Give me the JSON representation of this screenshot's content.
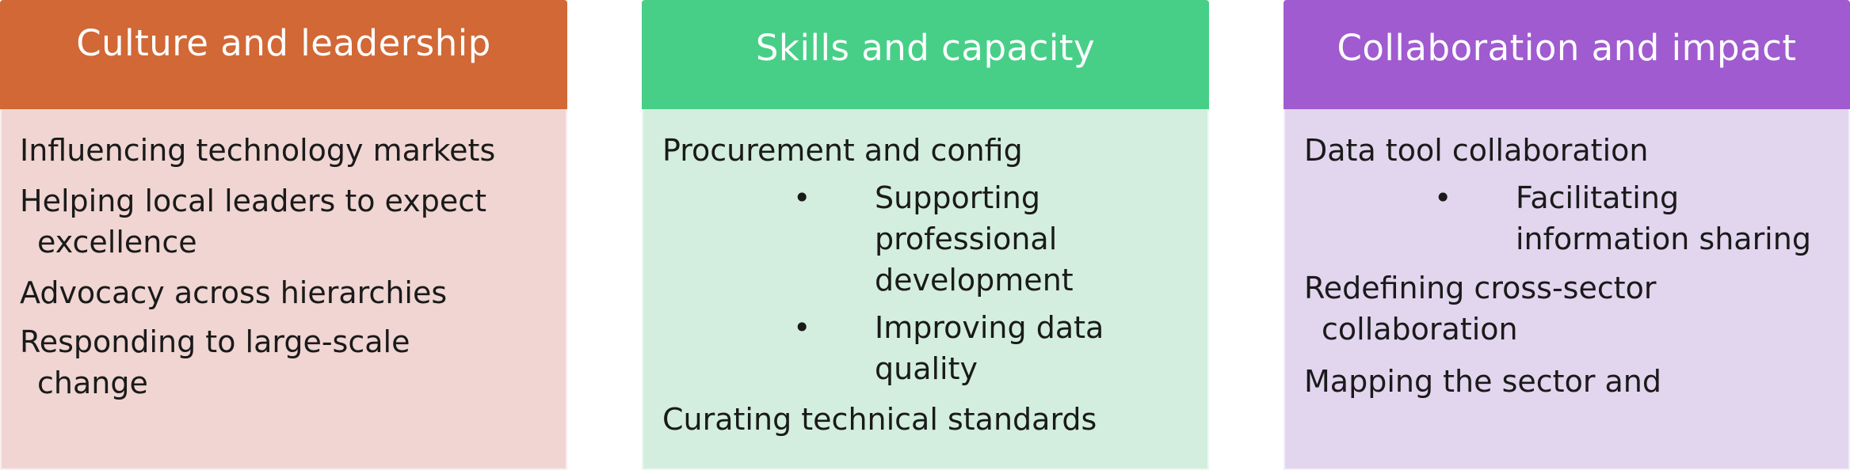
{
  "colors": {
    "culture_header": "#d16835",
    "culture_body": "#f0d5d2",
    "skills_header": "#47cf88",
    "skills_body": "#d3eede",
    "collab_header": "#a05bd0",
    "collab_body": "#e2d5ee",
    "text": "#1a1a1a"
  },
  "culture": {
    "title": "Culture and leadership",
    "items": [
      "Influencing technology markets",
      "Helping local leaders to expect",
      "excellence",
      "Advocacy across hierarchies",
      "Responding to large-scale",
      "change"
    ]
  },
  "skills": {
    "title": "Skills and capacity",
    "items": [
      "Procurement and config",
      "Supporting",
      "professional",
      "development",
      "Improving data",
      "quality",
      "Curating technical standards"
    ],
    "bullet": "•"
  },
  "collab": {
    "title": "Collaboration and impact",
    "items": [
      "Data tool collaboration",
      "Facilitating",
      "information sharing",
      "Redefining cross-sector",
      "collaboration",
      "Mapping the sector and"
    ],
    "bullet": "•"
  }
}
